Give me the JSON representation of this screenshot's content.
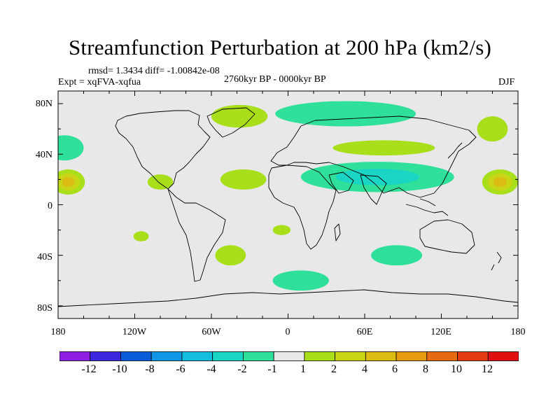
{
  "title": "Streamfunction Perturbation at 200 hPa (km2/s)",
  "stats": "rmsd= 1.3434 diff= -1.00842e-08",
  "experiment": "Expt = xqFVA-xqfua",
  "period": "2760kyr BP - 0000kyr BP",
  "season": "DJF",
  "y_ticks": [
    "80N",
    "40N",
    "0",
    "40S",
    "80S"
  ],
  "x_ticks": [
    "180",
    "120W",
    "60W",
    "0",
    "60E",
    "120E",
    "180"
  ],
  "colorbar": {
    "labels": [
      "-12",
      "-10",
      "-8",
      "-6",
      "-4",
      "-2",
      "-1",
      "1",
      "2",
      "4",
      "6",
      "8",
      "10",
      "12"
    ],
    "colors": [
      "#8f1ee3",
      "#3c28dc",
      "#0b5cd9",
      "#1196e6",
      "#12bde0",
      "#1ad4c4",
      "#2ee09a",
      "#e8e8e8",
      "#a8df1a",
      "#c8d616",
      "#dcbb12",
      "#e69a10",
      "#e56a10",
      "#e23c10",
      "#e00f10"
    ]
  },
  "colors": {
    "ocean_background": "#e8e8e8",
    "coastline": "#000000"
  },
  "field_anomalies": [
    {
      "lon": -172,
      "lat": 18,
      "value": 5,
      "rx": 13,
      "ry": 10,
      "region": "central Pacific (north)"
    },
    {
      "lon": 166,
      "lat": 18,
      "value": 5,
      "rx": 14,
      "ry": 10,
      "region": "western Pacific (north)"
    },
    {
      "lon": -38,
      "lat": 70,
      "value": 2,
      "rx": 22,
      "ry": 9,
      "region": "Greenland"
    },
    {
      "lon": -35,
      "lat": 20,
      "value": 2,
      "rx": 18,
      "ry": 8,
      "region": "North Atlantic subtropics"
    },
    {
      "lon": -100,
      "lat": 18,
      "value": 1.5,
      "rx": 10,
      "ry": 6,
      "region": "Mexico"
    },
    {
      "lon": 75,
      "lat": 45,
      "value": 2,
      "rx": 40,
      "ry": 6,
      "region": "Central Asia"
    },
    {
      "lon": 160,
      "lat": 60,
      "value": 1.5,
      "rx": 12,
      "ry": 10,
      "region": "Kamchatka"
    },
    {
      "lon": -45,
      "lat": -40,
      "value": 1.5,
      "rx": 12,
      "ry": 8,
      "region": "South Atlantic"
    },
    {
      "lon": -115,
      "lat": -25,
      "value": 1.5,
      "rx": 6,
      "ry": 4,
      "region": "South Pacific"
    },
    {
      "lon": -5,
      "lat": -20,
      "value": 1.5,
      "rx": 7,
      "ry": 4,
      "region": "South Atlantic east"
    },
    {
      "lon": -175,
      "lat": 45,
      "value": -1.5,
      "rx": 15,
      "ry": 10,
      "region": "North Pacific"
    },
    {
      "lon": 70,
      "lat": 22,
      "value": -3,
      "rx": 60,
      "ry": 12,
      "region": "Africa to Asia"
    },
    {
      "lon": 45,
      "lat": 72,
      "value": -1.5,
      "rx": 55,
      "ry": 10,
      "region": "Arctic Eurasia"
    },
    {
      "lon": 85,
      "lat": -40,
      "value": -1.5,
      "rx": 20,
      "ry": 8,
      "region": "Southern Indian Ocean"
    },
    {
      "lon": 10,
      "lat": -60,
      "value": -1.5,
      "rx": 22,
      "ry": 8,
      "region": "Southern Ocean"
    }
  ]
}
